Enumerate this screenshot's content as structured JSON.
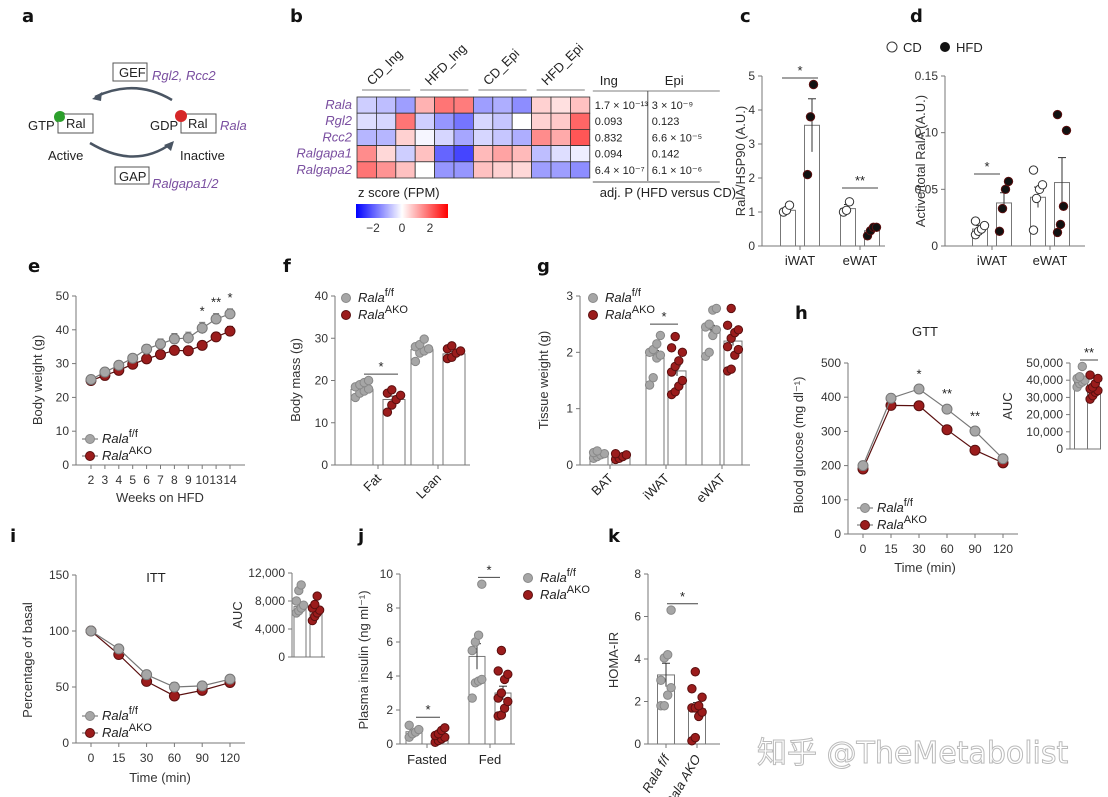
{
  "panels": {
    "a": {
      "label": "a",
      "gef": "GEF",
      "gef_genes": "Rgl2, Rcc2",
      "gap": "GAP",
      "gap_genes": "Ralgapa1/2",
      "gtp": "GTP",
      "gdp": "GDP",
      "ral": "Ral",
      "active": "Active",
      "inactive": "Inactive",
      "rala": "Rala",
      "colors": {
        "gtp": "#2ca02c",
        "gdp": "#d62728",
        "genes": "#7a4fa0"
      }
    },
    "b": {
      "label": "b",
      "legend_title": "z score (FPM)",
      "legend_ticks": [
        "−2",
        "0",
        "2"
      ],
      "pval_title": "adj. P (HFD versus CD)",
      "pval_cols": [
        "Ing",
        "Epi"
      ]
    },
    "c": {
      "label": "c"
    },
    "d": {
      "label": "d"
    },
    "e": {
      "label": "e"
    },
    "f": {
      "label": "f"
    },
    "g": {
      "label": "g"
    },
    "h": {
      "label": "h"
    },
    "i": {
      "label": "i"
    },
    "j": {
      "label": "j"
    },
    "k": {
      "label": "k"
    }
  },
  "legend_cd_hfd": {
    "cd": "CD",
    "hfd": "HFD"
  },
  "genotype_legend": {
    "ff": "Rala",
    "ff_sup": "f/f",
    "ako": "Rala",
    "ako_sup": "AKO",
    "colors": {
      "ff": "#a6a6a6",
      "ako": "#9b1c1c"
    }
  },
  "watermark": "知乎 @TheMetabolist",
  "chart_data": [
    {
      "id": "b",
      "type": "heatmap",
      "columns_groups": [
        "CD_Ing",
        "HFD_Ing",
        "CD_Epi",
        "HFD_Epi"
      ],
      "rows": [
        "Rala",
        "Rgl2",
        "Rcc2",
        "Ralgapa1",
        "Ralgapa2"
      ],
      "zlim": [
        -3,
        3
      ],
      "values": [
        [
          -0.6,
          -0.8,
          -1.2,
          1.0,
          1.8,
          1.7,
          -1.2,
          -1.0,
          -1.4,
          0.6,
          0.4,
          0.8
        ],
        [
          -0.4,
          -0.5,
          1.8,
          -0.6,
          -1.3,
          -1.7,
          -0.5,
          -0.7,
          0.0,
          0.6,
          0.7,
          2.0
        ],
        [
          -0.9,
          -0.9,
          0.6,
          -0.1,
          -0.5,
          -1.1,
          -0.5,
          -0.7,
          -1.0,
          1.5,
          1.1,
          2.2
        ],
        [
          1.5,
          0.5,
          -0.6,
          0.8,
          -1.9,
          -2.3,
          0.9,
          1.2,
          0.9,
          -0.8,
          -0.4,
          -0.2
        ],
        [
          1.8,
          1.4,
          0.8,
          0.0,
          -1.3,
          -1.3,
          0.8,
          0.6,
          0.5,
          -1.2,
          -1.2,
          -1.4
        ]
      ],
      "pvalues": {
        "Ing": [
          "1.7 × 10⁻¹³",
          "0.093",
          "0.832",
          "0.094",
          "6.4 × 10⁻⁷"
        ],
        "Epi": [
          "3 × 10⁻⁹",
          "0.123",
          "6.6 × 10⁻⁵",
          "0.142",
          "6.1 × 10⁻⁶"
        ]
      }
    },
    {
      "id": "c",
      "type": "bar",
      "ylabel": "RalA/HSP90 (A.U.)",
      "ylim": [
        0,
        5
      ],
      "yticks": [
        0,
        1,
        2,
        3,
        4,
        5
      ],
      "categories": [
        "iWAT",
        "eWAT"
      ],
      "series": [
        {
          "name": "CD",
          "means": [
            1.05,
            1.1
          ],
          "sem": [
            0.1,
            0.12
          ],
          "points": [
            [
              1.0,
              1.05,
              1.2
            ],
            [
              1.0,
              1.05,
              1.3
            ]
          ]
        },
        {
          "name": "HFD",
          "means": [
            3.55,
            0.45
          ],
          "sem": [
            0.78,
            0.06
          ],
          "points": [
            [
              2.1,
              3.8,
              4.75
            ],
            [
              0.3,
              0.45,
              0.55,
              0.55
            ]
          ]
        }
      ],
      "sig": [
        "*",
        "**"
      ]
    },
    {
      "id": "d",
      "type": "bar",
      "ylabel": "Active/total RalA (A.U.)",
      "ylim": [
        0,
        0.15
      ],
      "yticks": [
        "0",
        "0.05",
        "0.10",
        "0.15"
      ],
      "categories": [
        "iWAT",
        "eWAT"
      ],
      "series": [
        {
          "name": "CD",
          "means": [
            0.015,
            0.043
          ],
          "sem": [
            0.003,
            0.009
          ],
          "points": [
            [
              0.01,
              0.013,
              0.015,
              0.018,
              0.022
            ],
            [
              0.014,
              0.042,
              0.05,
              0.054,
              0.067
            ]
          ]
        },
        {
          "name": "HFD",
          "means": [
            0.038,
            0.056
          ],
          "sem": [
            0.009,
            0.022
          ],
          "points": [
            [
              0.013,
              0.033,
              0.05,
              0.057
            ],
            [
              0.012,
              0.019,
              0.035,
              0.102,
              0.116
            ]
          ]
        }
      ],
      "sig": [
        "*",
        ""
      ]
    },
    {
      "id": "e",
      "type": "line",
      "xlabel": "Weeks on HFD",
      "ylabel": "Body weight (g)",
      "ylim": [
        0,
        50
      ],
      "yticks": [
        0,
        10,
        20,
        30,
        40,
        50
      ],
      "x": [
        "2",
        "3",
        "4",
        "5",
        "6",
        "7",
        "8",
        "9",
        "10",
        "13",
        "14"
      ],
      "series": [
        {
          "name": "Rala f/f",
          "values": [
            25.3,
            27.5,
            29.5,
            31.6,
            34.3,
            35.8,
            37.3,
            37.6,
            40.5,
            43.2,
            44.7
          ],
          "sem": [
            0.8,
            0.8,
            0.9,
            1.0,
            1.3,
            1.5,
            1.6,
            1.7,
            1.7,
            1.6,
            1.5
          ]
        },
        {
          "name": "Rala AKO",
          "values": [
            25.0,
            26.5,
            28.0,
            29.8,
            31.4,
            32.7,
            33.9,
            33.8,
            35.4,
            37.9,
            39.6
          ],
          "sem": [
            0.7,
            0.7,
            0.8,
            0.9,
            0.9,
            1.0,
            1.0,
            1.0,
            1.0,
            1.2,
            1.4
          ]
        }
      ],
      "sig": {
        "10": "*",
        "13": "**",
        "14": "*"
      }
    },
    {
      "id": "f",
      "type": "bar",
      "ylabel": "Body mass (g)",
      "ylim": [
        0,
        40
      ],
      "yticks": [
        0,
        10,
        20,
        30,
        40
      ],
      "categories": [
        "Fat",
        "Lean"
      ],
      "series": [
        {
          "name": "Rala f/f",
          "means": [
            17.9,
            27.3
          ],
          "sem": [
            0.6,
            0.6
          ],
          "points": [
            [
              16,
              17,
              17.5,
              18,
              18.5,
              19,
              19.5,
              20
            ],
            [
              24.5,
              26.5,
              27,
              27.5,
              28,
              28.5,
              29.8
            ]
          ]
        },
        {
          "name": "Rala AKO",
          "means": [
            15.5,
            26.3
          ],
          "sem": [
            0.8,
            0.5
          ],
          "points": [
            [
              12.5,
              14.2,
              15.5,
              16.5,
              17,
              17.8
            ],
            [
              25.2,
              25.5,
              26.5,
              27,
              27.5,
              28.2
            ]
          ]
        }
      ],
      "sig": [
        "*",
        ""
      ]
    },
    {
      "id": "g",
      "type": "bar",
      "ylabel": "Tissue weight (g)",
      "ylim": [
        0,
        3
      ],
      "yticks": [
        0,
        1,
        2,
        3
      ],
      "categories": [
        "BAT",
        "iWAT",
        "eWAT"
      ],
      "series": [
        {
          "name": "Rala f/f",
          "means": [
            0.18,
            1.95,
            2.4
          ],
          "sem": [
            0.02,
            0.08,
            0.08
          ],
          "points": [
            [
              0.12,
              0.15,
              0.18,
              0.2,
              0.22,
              0.25
            ],
            [
              1.42,
              1.55,
              1.9,
              1.95,
              2.0,
              2.05,
              2.15,
              2.3
            ],
            [
              1.93,
              2.0,
              2.3,
              2.4,
              2.45,
              2.5,
              2.75,
              2.78
            ]
          ]
        },
        {
          "name": "Rala AKO",
          "means": [
            0.15,
            1.67,
            2.2
          ],
          "sem": [
            0.02,
            0.09,
            0.08
          ],
          "points": [
            [
              0.1,
              0.12,
              0.15,
              0.18,
              0.2
            ],
            [
              1.25,
              1.3,
              1.4,
              1.5,
              1.65,
              1.75,
              1.85,
              2.0,
              2.08,
              2.28
            ],
            [
              1.67,
              1.7,
              1.95,
              2.05,
              2.1,
              2.25,
              2.35,
              2.4,
              2.48,
              2.78
            ]
          ]
        }
      ],
      "sig": [
        "",
        "*",
        ""
      ]
    },
    {
      "id": "h",
      "type": "line",
      "title": "GTT",
      "xlabel": "Time (min)",
      "ylabel": "Blood glucose (mg dl⁻¹)",
      "ylim": [
        0,
        500
      ],
      "yticks": [
        0,
        100,
        200,
        300,
        400,
        500
      ],
      "x": [
        "0",
        "15",
        "30",
        "60",
        "90",
        "120"
      ],
      "series": [
        {
          "name": "Rala f/f",
          "values": [
            200,
            397,
            424,
            365,
            301,
            220
          ],
          "sem": [
            6,
            12,
            10,
            12,
            10,
            6
          ]
        },
        {
          "name": "Rala AKO",
          "values": [
            190,
            376,
            375,
            305,
            245,
            208
          ],
          "sem": [
            5,
            8,
            10,
            8,
            10,
            5
          ]
        }
      ],
      "sig": {
        "30": "*",
        "60": "**",
        "90": "**"
      },
      "inset": {
        "ylabel": "AUC",
        "ylim": [
          0,
          50000
        ],
        "yticks": [
          "0",
          "10,000",
          "20,000",
          "30,000",
          "40,000",
          "50,000"
        ],
        "means": [
          39500,
          34500
        ],
        "points": [
          [
            36000,
            38000,
            39000,
            40000,
            41000,
            42000,
            48000
          ],
          [
            29000,
            31000,
            33000,
            34000,
            35000,
            36000,
            38000,
            41000,
            43000
          ]
        ],
        "sig": "**"
      }
    },
    {
      "id": "i",
      "type": "line",
      "title": "ITT",
      "xlabel": "Time (min)",
      "ylabel": "Percentage of basal",
      "ylim": [
        0,
        150
      ],
      "yticks": [
        0,
        50,
        100,
        150
      ],
      "x": [
        "0",
        "15",
        "30",
        "60",
        "90",
        "120"
      ],
      "series": [
        {
          "name": "Rala f/f",
          "values": [
            100,
            84,
            61,
            50,
            51,
            57
          ],
          "sem": [
            0,
            2,
            3,
            4,
            3,
            2
          ]
        },
        {
          "name": "Rala AKO",
          "values": [
            100,
            79,
            55,
            42,
            47,
            54
          ],
          "sem": [
            0,
            2,
            2,
            2,
            2,
            2
          ]
        }
      ],
      "inset": {
        "ylabel": "AUC",
        "ylim": [
          0,
          12000
        ],
        "yticks": [
          "0",
          "4,000",
          "8,000",
          "12,000"
        ],
        "means": [
          7200,
          6600
        ],
        "points": [
          [
            6300,
            6600,
            7000,
            7400,
            8000,
            9500,
            10300
          ],
          [
            5200,
            5800,
            6300,
            6700,
            7000,
            7500,
            8700
          ]
        ]
      }
    },
    {
      "id": "j",
      "type": "bar",
      "ylabel": "Plasma insulin (ng ml⁻¹)",
      "ylim": [
        0,
        10
      ],
      "yticks": [
        0,
        2,
        4,
        6,
        8,
        10
      ],
      "categories": [
        "Fasted",
        "Fed"
      ],
      "series": [
        {
          "name": "Rala f/f",
          "means": [
            0.72,
            5.15
          ],
          "sem": [
            0.1,
            0.75
          ],
          "points": [
            [
              0.4,
              0.6,
              0.7,
              0.85,
              1.1
            ],
            [
              2.7,
              3.6,
              3.7,
              3.8,
              5.5,
              6.0,
              6.4,
              9.4
            ]
          ]
        },
        {
          "name": "Rala AKO",
          "means": [
            0.42,
            3.0
          ],
          "sem": [
            0.08,
            0.4
          ],
          "points": [
            [
              0.1,
              0.2,
              0.3,
              0.4,
              0.5,
              0.6,
              0.8,
              0.95
            ],
            [
              1.65,
              1.7,
              2.1,
              2.5,
              2.7,
              3.0,
              3.8,
              4.1,
              4.3,
              5.5
            ]
          ]
        }
      ],
      "sig": [
        "*",
        "*"
      ]
    },
    {
      "id": "k",
      "type": "bar",
      "ylabel": "HOMA-IR",
      "ylim": [
        0,
        8
      ],
      "yticks": [
        0,
        2,
        4,
        6,
        8
      ],
      "categories": [
        "Rala f/f",
        "Rala AKO"
      ],
      "series": [
        {
          "name": "values",
          "means": [
            3.25,
            1.65
          ],
          "sem": [
            0.55,
            0.3
          ],
          "points": [
            [
              1.8,
              1.8,
              2.3,
              2.65,
              3.0,
              4.05,
              4.2,
              6.3
            ],
            [
              0.15,
              0.3,
              1.3,
              1.5,
              1.7,
              1.7,
              1.8,
              2.2,
              2.6,
              3.4
            ]
          ]
        }
      ],
      "sig": "*"
    }
  ]
}
